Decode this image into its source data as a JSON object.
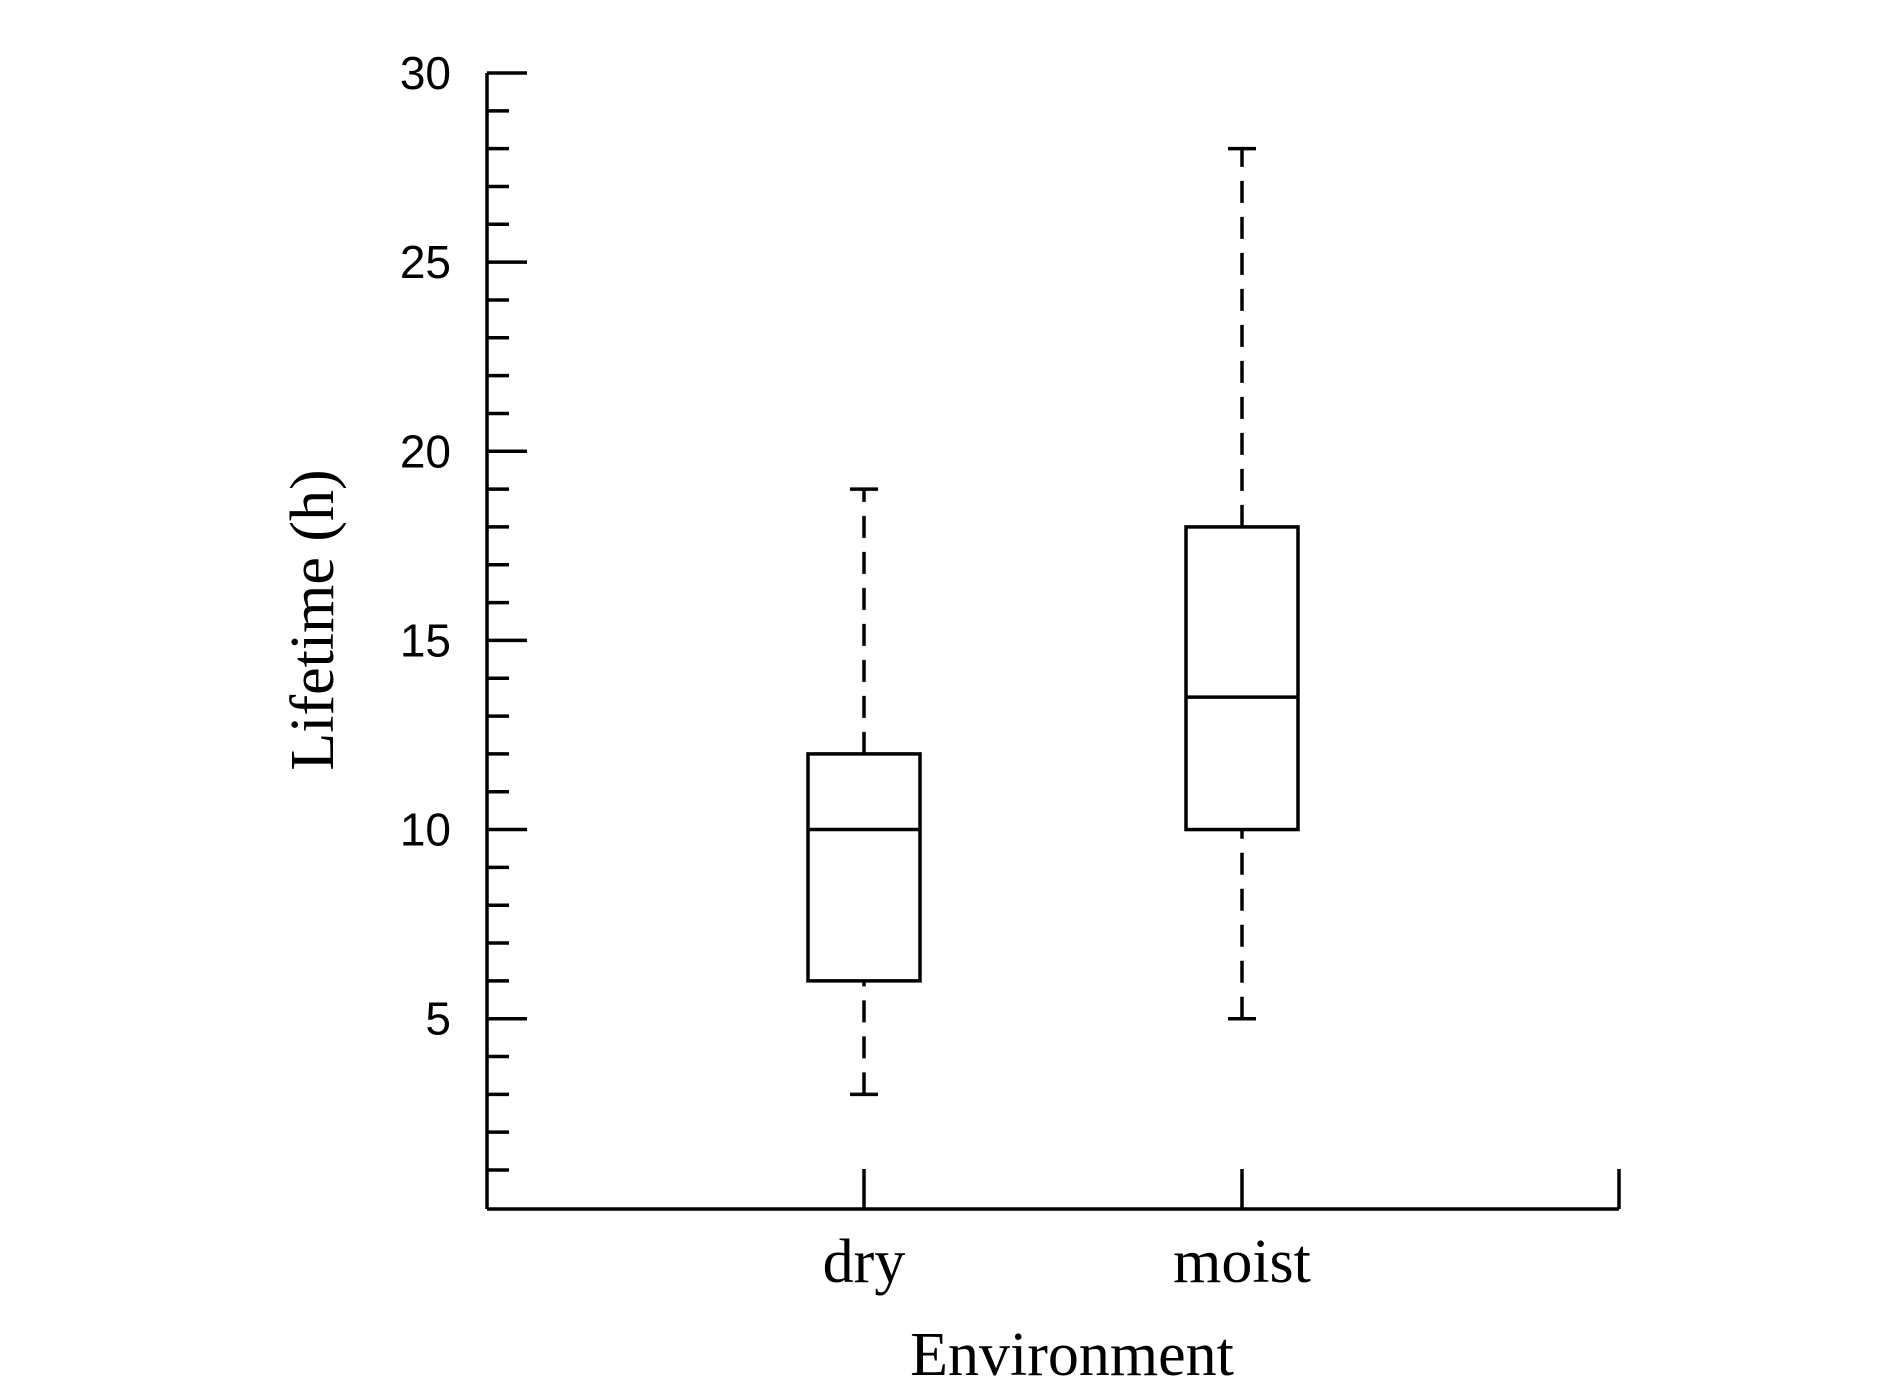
{
  "chart_data": {
    "type": "box",
    "xlabel": "Environment",
    "ylabel": "Lifetime (h)",
    "categories": [
      "dry",
      "moist"
    ],
    "boxes": [
      {
        "category": "dry",
        "whisker_low": 3,
        "q1": 6,
        "median": 10,
        "q3": 12,
        "whisker_high": 19
      },
      {
        "category": "moist",
        "whisker_low": 5,
        "q1": 10,
        "median": 13.5,
        "q3": 18,
        "whisker_high": 28
      }
    ],
    "ylim": [
      1,
      30
    ],
    "yticks": [
      5,
      10,
      15,
      20,
      25,
      30
    ],
    "yticks_minor_step": 1,
    "grid": false,
    "legend": "none",
    "colors": {
      "line": "#000000",
      "background": "#ffffff"
    }
  }
}
